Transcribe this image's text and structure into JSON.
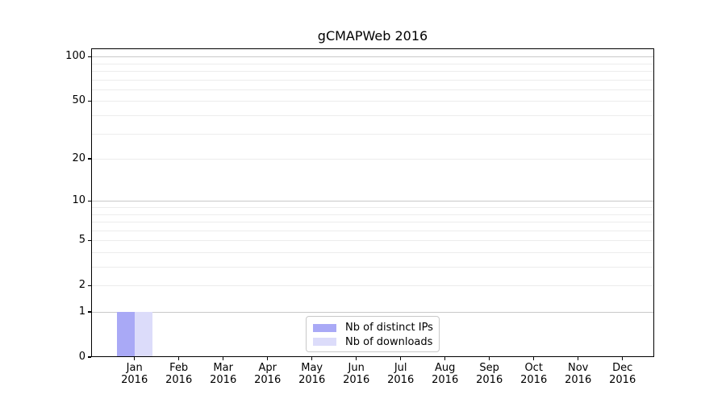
{
  "title": "gCMAPWeb 2016",
  "chart_data": {
    "type": "bar",
    "title": "gCMAPWeb 2016",
    "categories": [
      "Jan 2016",
      "Feb 2016",
      "Mar 2016",
      "Apr 2016",
      "May 2016",
      "Jun 2016",
      "Jul 2016",
      "Aug 2016",
      "Sep 2016",
      "Oct 2016",
      "Nov 2016",
      "Dec 2016"
    ],
    "series": [
      {
        "name": "Nb of distinct IPs",
        "color": "#a9a9f6",
        "values": [
          1,
          0,
          0,
          0,
          0,
          0,
          0,
          0,
          0,
          0,
          0,
          0
        ]
      },
      {
        "name": "Nb of downloads",
        "color": "#dcdcfa",
        "values": [
          1,
          0,
          0,
          0,
          0,
          0,
          0,
          0,
          0,
          0,
          0,
          0
        ]
      }
    ],
    "yscale": "log1p",
    "ylim": [
      0,
      113
    ],
    "ytick_values": [
      0,
      1,
      2,
      5,
      10,
      20,
      50,
      100
    ],
    "ytick_labels": [
      "0",
      "1",
      "2",
      "5",
      "10",
      "20",
      "50",
      "100"
    ],
    "major_grid_values": [
      1,
      10,
      100
    ],
    "minor_grid_values": [
      2,
      3,
      4,
      5,
      6,
      7,
      8,
      9,
      20,
      30,
      40,
      50,
      60,
      70,
      80,
      90
    ],
    "grid": "horizontal",
    "legend_position": "bottom-center",
    "xlabel": "",
    "ylabel": ""
  },
  "colors": {
    "background": "#ffffff",
    "axis": "#000000",
    "major_grid": "#c9c9c9",
    "minor_grid": "#ececec",
    "legend_border": "#c9c9c9",
    "bar_distinct_ips": "#a9a9f6",
    "bar_downloads": "#dcdcfa"
  }
}
